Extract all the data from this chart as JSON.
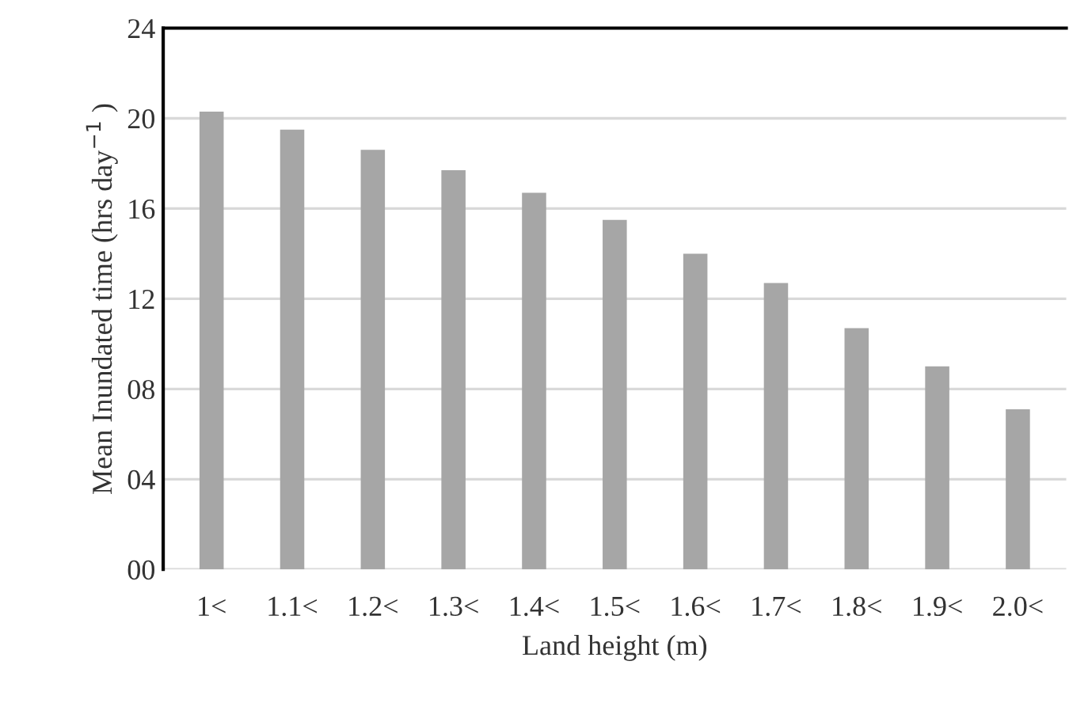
{
  "chart_data": {
    "type": "bar",
    "categories": [
      "1<",
      "1.1<",
      "1.2<",
      "1.3<",
      "1.4<",
      "1.5<",
      "1.6<",
      "1.7<",
      "1.8<",
      "1.9<",
      "2.0<"
    ],
    "values": [
      20.3,
      19.5,
      18.6,
      17.7,
      16.7,
      15.5,
      14.0,
      12.7,
      10.7,
      9.0,
      7.1
    ],
    "color": "#a6a6a6",
    "xlabel": "Land height (m)",
    "ylabel": "Mean Inundated time (hrs day$^{−1}$ )",
    "ylim": [
      0,
      24
    ],
    "yticks": [
      {
        "value": 0,
        "label": "00"
      },
      {
        "value": 4,
        "label": "04"
      },
      {
        "value": 8,
        "label": "08"
      },
      12,
      16,
      20,
      24
    ],
    "grid": "y"
  }
}
